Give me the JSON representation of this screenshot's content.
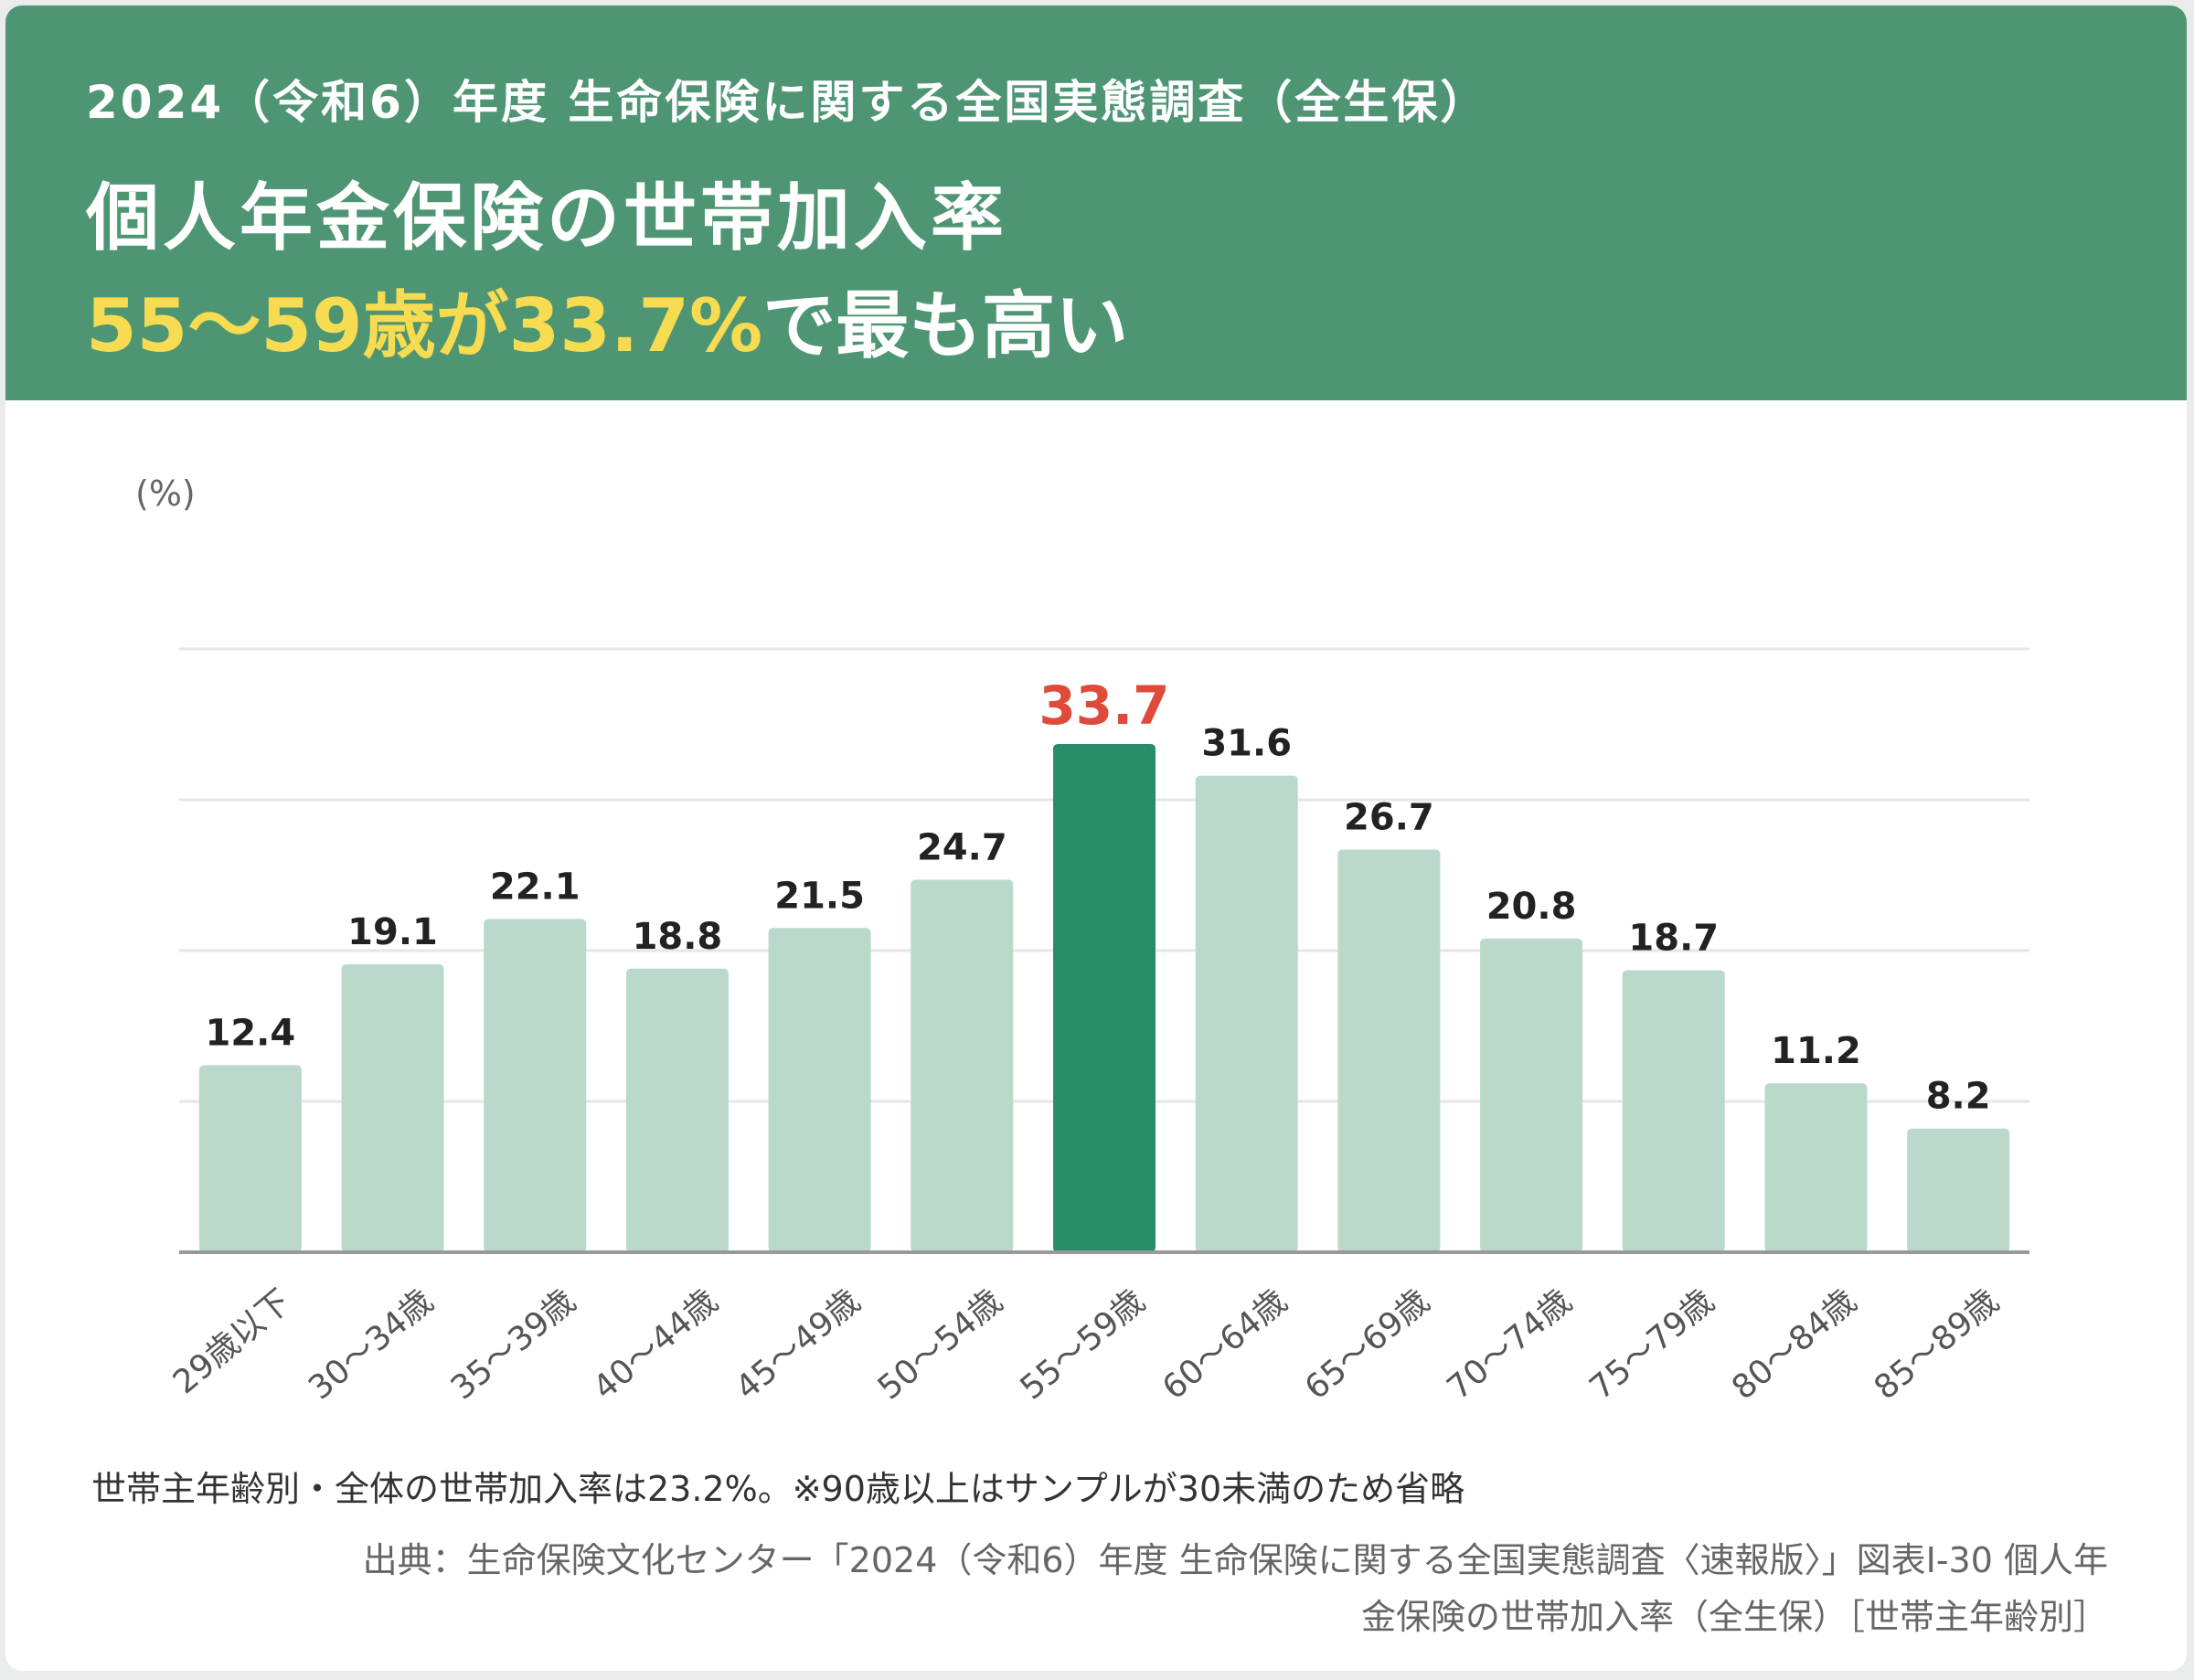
{
  "header": {
    "supertitle": "2024（令和6）年度 生命保険に関する全国実態調査（全生保）",
    "title": "個人年金保険の世帯加入率",
    "subtitle_highlight": "55〜59歳が33.7%",
    "subtitle_rest": "で最も高い"
  },
  "colors": {
    "header_bg": "#4e9574",
    "highlight_text": "#f7dc52",
    "bar": "#bad9cb",
    "bar_highlight": "#2a8d69",
    "label_highlight": "#e04a3b"
  },
  "chart_data": {
    "type": "bar",
    "ylabel": "(%)",
    "ylim": [
      0,
      40
    ],
    "grid": true,
    "categories": [
      "29歳以下",
      "30〜34歳",
      "35〜39歳",
      "40〜44歳",
      "45〜49歳",
      "50〜54歳",
      "55〜59歳",
      "60〜64歳",
      "65〜69歳",
      "70〜74歳",
      "75〜79歳",
      "80〜84歳",
      "85〜89歳"
    ],
    "values": [
      12.4,
      19.1,
      22.1,
      18.8,
      21.5,
      24.7,
      33.7,
      31.6,
      26.7,
      20.8,
      18.7,
      11.2,
      8.2
    ],
    "value_labels": [
      "12.4",
      "19.1",
      "22.1",
      "18.8",
      "21.5",
      "24.7",
      "33.7",
      "31.6",
      "26.7",
      "20.8",
      "18.7",
      "11.2",
      "8.2"
    ],
    "highlight_index": 6
  },
  "footer": {
    "note": "世帯主年齢別・全体の世帯加入率は23.2%。※90歳以上はサンプルが30未満のため省略",
    "source_line1": "出典：生命保険文化センター「2024（令和6）年度 生命保険に関する全国実態調査〈速報版〉」図表I-30 個人年",
    "source_line2": "金保険の世帯加入率（全生保）［世帯主年齢別］"
  }
}
